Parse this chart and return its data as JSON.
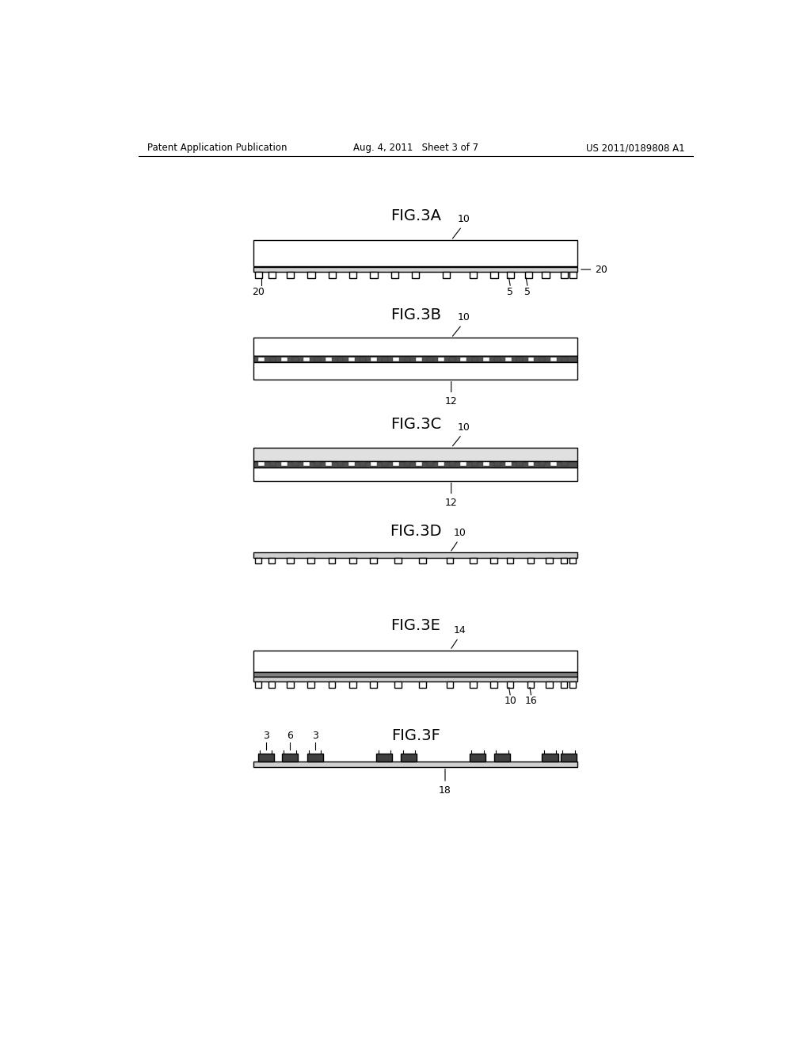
{
  "bg_color": "#ffffff",
  "fig_width": 10.24,
  "fig_height": 13.2,
  "header_left": "Patent Application Publication",
  "header_mid": "Aug. 4, 2011   Sheet 3 of 7",
  "header_right": "US 2011/0189808 A1"
}
